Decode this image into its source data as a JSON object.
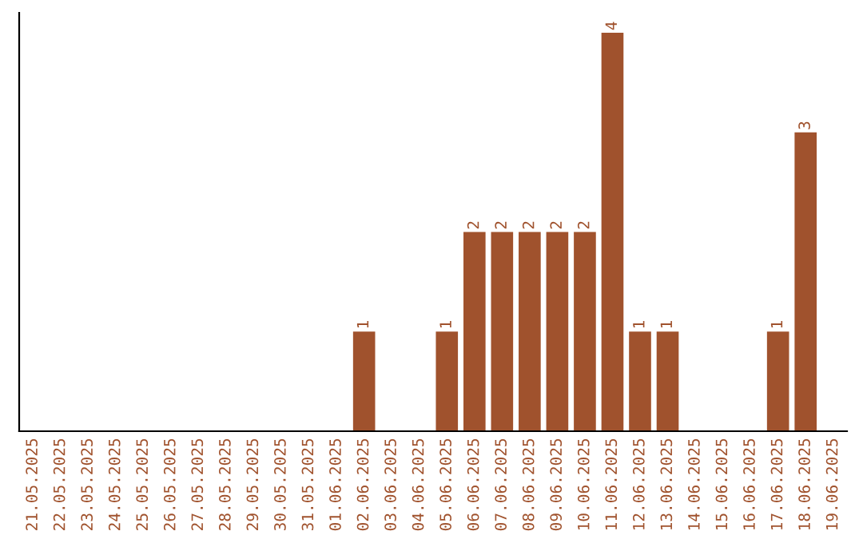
{
  "chart_data": {
    "type": "bar",
    "categories": [
      "21.05.2025",
      "22.05.2025",
      "23.05.2025",
      "24.05.2025",
      "25.05.2025",
      "26.05.2025",
      "27.05.2025",
      "28.05.2025",
      "29.05.2025",
      "30.05.2025",
      "31.05.2025",
      "01.06.2025",
      "02.06.2025",
      "03.06.2025",
      "04.06.2025",
      "05.06.2025",
      "06.06.2025",
      "07.06.2025",
      "08.06.2025",
      "09.06.2025",
      "10.06.2025",
      "11.06.2025",
      "12.06.2025",
      "13.06.2025",
      "14.06.2025",
      "15.06.2025",
      "16.06.2025",
      "17.06.2025",
      "18.06.2025",
      "19.06.2025"
    ],
    "values": [
      null,
      null,
      null,
      null,
      null,
      null,
      null,
      null,
      null,
      null,
      null,
      null,
      1,
      null,
      null,
      1,
      2,
      2,
      2,
      2,
      2,
      4,
      1,
      1,
      null,
      null,
      null,
      1,
      3,
      null
    ],
    "value_labels": [
      null,
      null,
      null,
      null,
      null,
      null,
      null,
      null,
      null,
      null,
      null,
      null,
      "1",
      null,
      null,
      "1",
      "2",
      "2",
      "2",
      "2",
      "2",
      "4",
      "1",
      "1",
      null,
      null,
      null,
      "1",
      "3",
      null
    ],
    "color": "#a0522d",
    "grid": false,
    "legend": false
  }
}
